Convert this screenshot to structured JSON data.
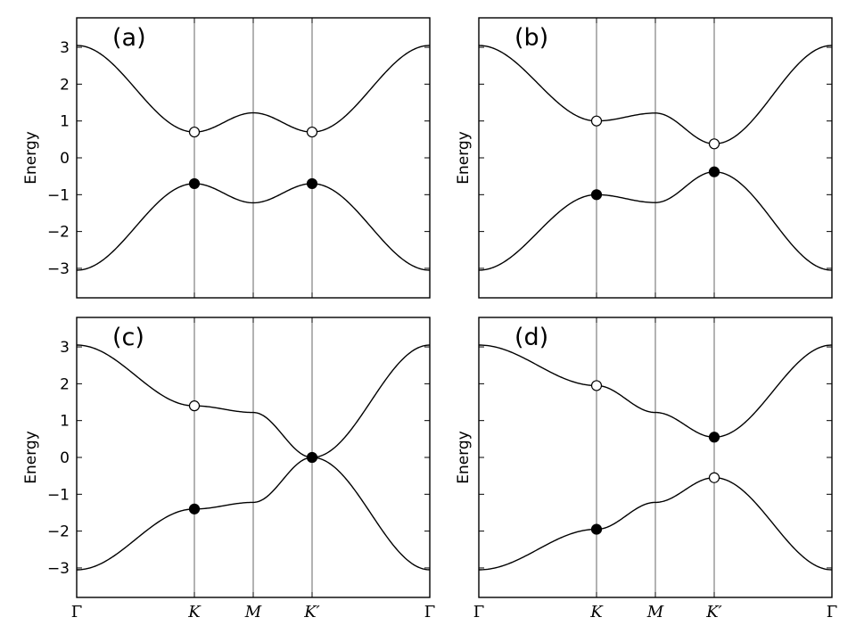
{
  "chart_data": {
    "type": "line",
    "shared": {
      "ylabel": "Energy",
      "ylim": [
        -3.8,
        3.8
      ],
      "yticks": [
        3,
        2,
        1,
        0,
        -1,
        -2,
        -3
      ],
      "ytick_labels": [
        "3",
        "2",
        "1",
        "0",
        "−1",
        "−2",
        "−3"
      ],
      "xticks": [
        0,
        1,
        1.5,
        2,
        3
      ],
      "xtick_labels": [
        "Γ",
        "K",
        "M",
        "K′",
        "Γ"
      ],
      "vertical_lines_at": [
        1,
        1.5,
        2
      ],
      "band_max": 3.05,
      "grid": false,
      "legend": "none"
    },
    "panels": [
      {
        "label": "(a)",
        "delta_K": 0.7,
        "delta_Kp": 0.7,
        "markers": [
          {
            "x": 1,
            "y": 0.7,
            "fill": "open"
          },
          {
            "x": 1,
            "y": -0.7,
            "fill": "filled"
          },
          {
            "x": 2,
            "y": 0.7,
            "fill": "open"
          },
          {
            "x": 2,
            "y": -0.7,
            "fill": "filled"
          }
        ]
      },
      {
        "label": "(b)",
        "delta_K": 1.0,
        "delta_Kp": 0.38,
        "markers": [
          {
            "x": 1,
            "y": 1.0,
            "fill": "open"
          },
          {
            "x": 1,
            "y": -1.0,
            "fill": "filled"
          },
          {
            "x": 2,
            "y": 0.38,
            "fill": "open"
          },
          {
            "x": 2,
            "y": -0.38,
            "fill": "filled"
          }
        ]
      },
      {
        "label": "(c)",
        "delta_K": 1.4,
        "delta_Kp": 0.0,
        "markers": [
          {
            "x": 1,
            "y": 1.4,
            "fill": "open"
          },
          {
            "x": 1,
            "y": -1.4,
            "fill": "filled"
          },
          {
            "x": 2,
            "y": 0.0,
            "fill": "filled"
          }
        ]
      },
      {
        "label": "(d)",
        "delta_K": 1.95,
        "delta_Kp": -0.55,
        "markers": [
          {
            "x": 1,
            "y": 1.95,
            "fill": "open"
          },
          {
            "x": 1,
            "y": -1.95,
            "fill": "filled"
          },
          {
            "x": 2,
            "y": 0.55,
            "fill": "filled"
          },
          {
            "x": 2,
            "y": -0.55,
            "fill": "open"
          }
        ]
      }
    ]
  }
}
